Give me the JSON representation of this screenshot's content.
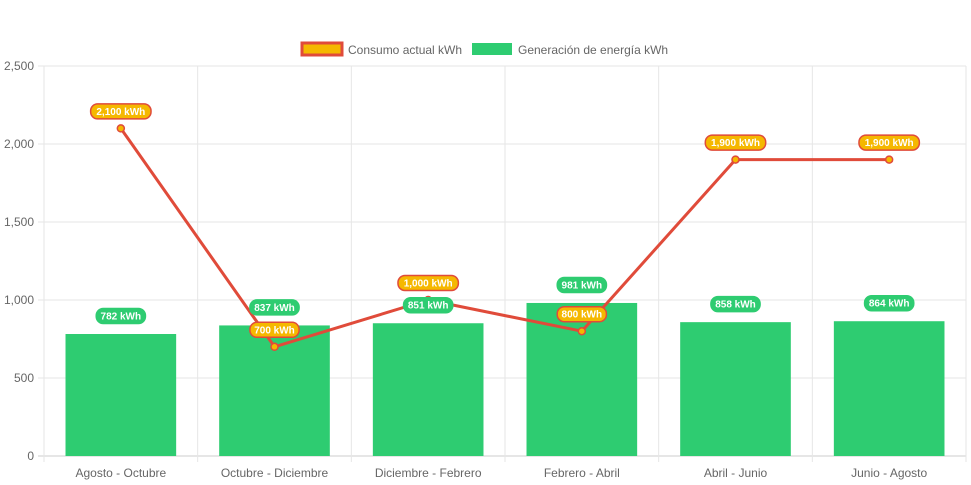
{
  "chart_data": {
    "type": "bar",
    "categories": [
      "Agosto - Octubre",
      "Octubre - Diciembre",
      "Diciembre - Febrero",
      "Febrero - Abril",
      "Abril - Junio",
      "Junio - Agosto"
    ],
    "series": [
      {
        "name": "Consumo actual kWh",
        "type": "line",
        "values": [
          2100,
          700,
          1000,
          800,
          1900,
          1900
        ],
        "labels": [
          "2,100 kWh",
          "700 kWh",
          "1,000 kWh",
          "800 kWh",
          "1,900 kWh",
          "1,900 kWh"
        ],
        "line_color": "#e04b3a",
        "fill_color": "#f5b800"
      },
      {
        "name": "Generación de energía kWh",
        "type": "bar",
        "values": [
          782,
          837,
          851,
          981,
          858,
          864
        ],
        "labels": [
          "782 kWh",
          "837 kWh",
          "851 kWh",
          "981 kWh",
          "858 kWh",
          "864 kWh"
        ],
        "color": "#2ecc71"
      }
    ],
    "yticks": [
      0,
      500,
      1000,
      1500,
      2000,
      2500
    ],
    "ytick_labels": [
      "0",
      "500",
      "1,000",
      "1,500",
      "2,000",
      "2,500"
    ],
    "ylim": [
      0,
      2500
    ],
    "grid": true,
    "legend_position": "top-center",
    "title": "",
    "xlabel": "",
    "ylabel": ""
  }
}
